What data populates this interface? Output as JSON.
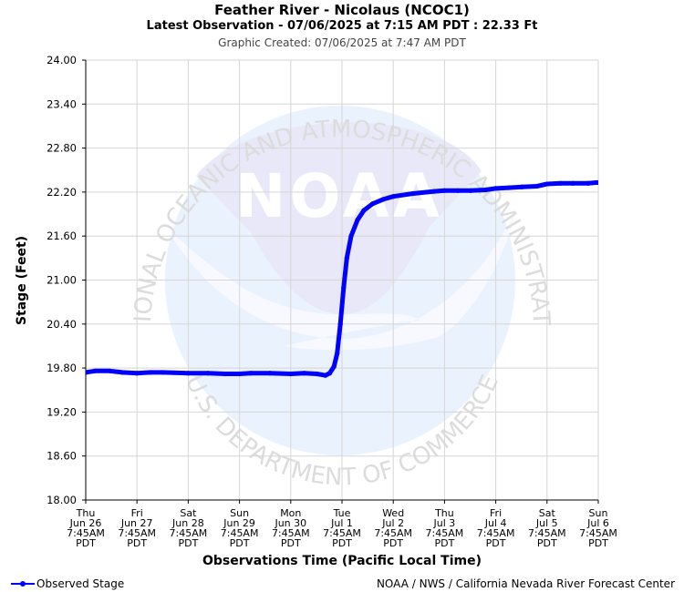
{
  "header": {
    "title": "Feather River - Nicolaus (NCOC1)",
    "subtitle": "Latest Observation - 07/06/2025 at 7:15 AM PDT : 22.33 Ft",
    "created": "Graphic Created: 07/06/2025 at 7:47 AM PDT"
  },
  "legend": {
    "label": "Observed Stage",
    "color": "#0000ff"
  },
  "credit": "NOAA / NWS / California Nevada River Forecast Center",
  "watermark": {
    "arc_top": "NATIONAL OCEANIC AND ATMOSPHERIC ADMINISTRATION",
    "arc_bottom": "U.S. DEPARTMENT OF COMMERCE",
    "logo_text": "NOAA"
  },
  "chart_data": {
    "type": "line",
    "xlabel": "Observations Time (Pacific Local Time)",
    "ylabel": "Stage (Feet)",
    "ylim": [
      18.0,
      24.0
    ],
    "xlim": [
      "2025-06-26 07:45",
      "2025-07-06 07:45"
    ],
    "grid": true,
    "legend_position": "bottom-left",
    "yticks": [
      "18.00",
      "18.60",
      "19.20",
      "19.80",
      "20.40",
      "21.00",
      "21.60",
      "22.20",
      "22.80",
      "23.40",
      "24.00"
    ],
    "xticks": [
      [
        "Thu",
        "Jun 26",
        "7:45AM",
        "PDT"
      ],
      [
        "Fri",
        "Jun 27",
        "7:45AM",
        "PDT"
      ],
      [
        "Sat",
        "Jun 28",
        "7:45AM",
        "PDT"
      ],
      [
        "Sun",
        "Jun 29",
        "7:45AM",
        "PDT"
      ],
      [
        "Mon",
        "Jun 30",
        "7:45AM",
        "PDT"
      ],
      [
        "Tue",
        "Jul 1",
        "7:45AM",
        "PDT"
      ],
      [
        "Wed",
        "Jul 2",
        "7:45AM",
        "PDT"
      ],
      [
        "Thu",
        "Jul 3",
        "7:45AM",
        "PDT"
      ],
      [
        "Fri",
        "Jul 4",
        "7:45AM",
        "PDT"
      ],
      [
        "Sat",
        "Jul 5",
        "7:45AM",
        "PDT"
      ],
      [
        "Sun",
        "Jul 6",
        "7:45AM",
        "PDT"
      ]
    ],
    "series": [
      {
        "name": "Observed Stage",
        "color": "#0000ff",
        "points": [
          [
            "2025-06-26 07:45",
            19.74
          ],
          [
            "2025-06-26 12:00",
            19.76
          ],
          [
            "2025-06-26 19:00",
            19.76
          ],
          [
            "2025-06-27 01:00",
            19.74
          ],
          [
            "2025-06-27 07:45",
            19.73
          ],
          [
            "2025-06-27 14:00",
            19.74
          ],
          [
            "2025-06-27 20:00",
            19.74
          ],
          [
            "2025-06-28 07:45",
            19.73
          ],
          [
            "2025-06-28 17:00",
            19.73
          ],
          [
            "2025-06-29 01:00",
            19.72
          ],
          [
            "2025-06-29 07:45",
            19.72
          ],
          [
            "2025-06-29 13:00",
            19.73
          ],
          [
            "2025-06-29 22:00",
            19.73
          ],
          [
            "2025-06-30 07:45",
            19.72
          ],
          [
            "2025-06-30 14:00",
            19.73
          ],
          [
            "2025-06-30 20:00",
            19.72
          ],
          [
            "2025-07-01 00:00",
            19.7
          ],
          [
            "2025-07-01 02:00",
            19.73
          ],
          [
            "2025-07-01 04:00",
            19.82
          ],
          [
            "2025-07-01 05:30",
            20.0
          ],
          [
            "2025-07-01 07:00",
            20.4
          ],
          [
            "2025-07-01 08:30",
            20.9
          ],
          [
            "2025-07-01 10:00",
            21.3
          ],
          [
            "2025-07-01 12:00",
            21.6
          ],
          [
            "2025-07-01 15:00",
            21.82
          ],
          [
            "2025-07-01 18:00",
            21.95
          ],
          [
            "2025-07-01 22:00",
            22.04
          ],
          [
            "2025-07-02 03:00",
            22.1
          ],
          [
            "2025-07-02 07:45",
            22.14
          ],
          [
            "2025-07-02 17:00",
            22.18
          ],
          [
            "2025-07-03 03:00",
            22.21
          ],
          [
            "2025-07-03 07:45",
            22.22
          ],
          [
            "2025-07-03 14:00",
            22.22
          ],
          [
            "2025-07-03 20:00",
            22.22
          ],
          [
            "2025-07-04 03:00",
            22.23
          ],
          [
            "2025-07-04 07:45",
            22.25
          ],
          [
            "2025-07-04 14:00",
            22.26
          ],
          [
            "2025-07-04 20:00",
            22.27
          ],
          [
            "2025-07-05 03:00",
            22.28
          ],
          [
            "2025-07-05 07:45",
            22.31
          ],
          [
            "2025-07-05 14:00",
            22.32
          ],
          [
            "2025-07-05 20:00",
            22.32
          ],
          [
            "2025-07-06 03:00",
            22.32
          ],
          [
            "2025-07-06 07:15",
            22.33
          ]
        ]
      }
    ]
  }
}
